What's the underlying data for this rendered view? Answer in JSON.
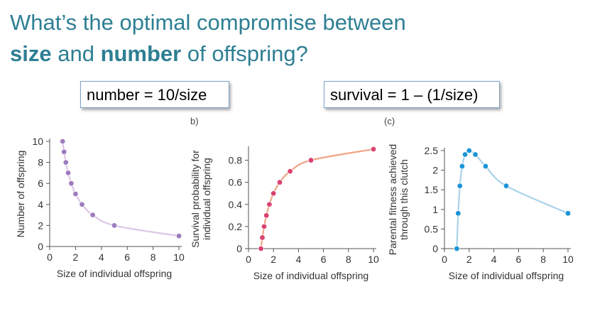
{
  "title": {
    "line1": "What’s the optimal compromise between",
    "size_word": "size",
    "and_word": " and ",
    "number_word": "number",
    "rest": " of offspring?"
  },
  "formulas": {
    "number": "number = 10/size",
    "survival": "survival = 1 – (1/size)"
  },
  "panel_tags": {
    "b": "b)",
    "c": "(c)"
  },
  "colors": {
    "title": "#2e7f93",
    "purple_line": "#dcc7e6",
    "purple_point": "#9e7bbd",
    "red_line": "#f0a486",
    "red_point": "#d94370",
    "blue_line": "#a9d3ea",
    "blue_point": "#1a95d6"
  },
  "chart_data": [
    {
      "type": "line",
      "xlabel": "Size of individual offspring",
      "ylabel": "Number of offspring",
      "xlim": [
        0,
        10
      ],
      "ylim": [
        0,
        10
      ],
      "xticks": [
        "0",
        "2",
        "4",
        "6",
        "8",
        "10"
      ],
      "yticks": [
        "0",
        "2",
        "4",
        "6",
        "8",
        "10"
      ],
      "x": [
        1,
        1.11,
        1.25,
        1.43,
        1.67,
        2,
        2.5,
        3.33,
        5,
        10
      ],
      "y": [
        10,
        9,
        8,
        7,
        6,
        5,
        4,
        3,
        2,
        1
      ]
    },
    {
      "type": "line",
      "xlabel": "Size of individual offspring",
      "ylabel": "Survival probability for individual offspring",
      "xlim": [
        0,
        10
      ],
      "ylim": [
        0,
        0.9
      ],
      "xticks": [
        "0",
        "2",
        "4",
        "6",
        "8",
        "10"
      ],
      "yticks": [
        "0",
        "0.2",
        "0.4",
        "0.6",
        "0.8"
      ],
      "x": [
        1,
        1.11,
        1.25,
        1.43,
        1.67,
        2,
        2.5,
        3.33,
        5,
        10
      ],
      "y": [
        0,
        0.1,
        0.2,
        0.3,
        0.4,
        0.5,
        0.6,
        0.7,
        0.8,
        0.9
      ]
    },
    {
      "type": "line",
      "xlabel": "Size of individual offspring",
      "ylabel": "Parental fitness achieved through this clutch",
      "xlim": [
        0,
        10
      ],
      "ylim": [
        0,
        2.5
      ],
      "xticks": [
        "0",
        "2",
        "4",
        "6",
        "8",
        "10"
      ],
      "yticks": [
        "0",
        "0.5",
        "1",
        "1.5",
        "2",
        "2.5"
      ],
      "x": [
        1,
        1.11,
        1.25,
        1.43,
        1.67,
        2,
        2.5,
        3.33,
        5,
        10
      ],
      "y": [
        0,
        0.9,
        1.6,
        2.1,
        2.4,
        2.5,
        2.4,
        2.1,
        1.6,
        0.9
      ]
    }
  ]
}
